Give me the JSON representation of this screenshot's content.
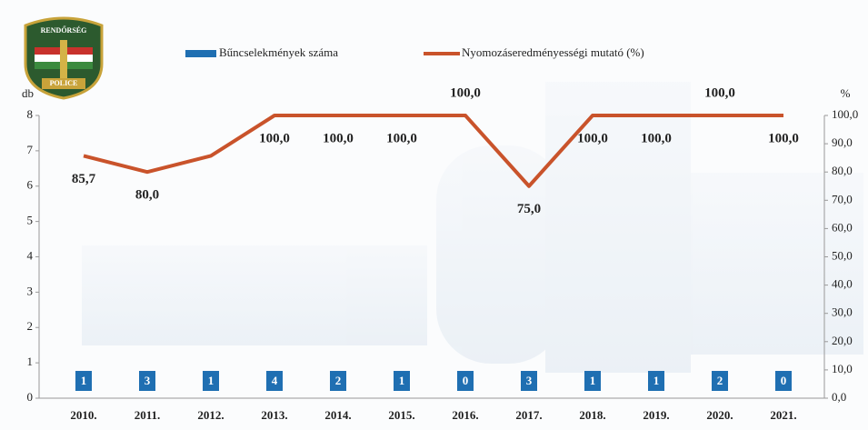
{
  "logo": {
    "top_text": "RENDŐRSÉG",
    "bottom_text": "POLICE"
  },
  "chart_data": {
    "type": "bar-line",
    "categories": [
      "2010.",
      "2011.",
      "2012.",
      "2013.",
      "2014.",
      "2015.",
      "2016.",
      "2017.",
      "2018.",
      "2019.",
      "2020.",
      "2021."
    ],
    "y_label": "db",
    "y2_label": "%",
    "ylim": [
      0,
      8
    ],
    "yticks": [
      0,
      1,
      2,
      3,
      4,
      5,
      6,
      7,
      8
    ],
    "y2lim": [
      0,
      100
    ],
    "y2ticks": [
      {
        "value": 0,
        "label": "0,0"
      },
      {
        "value": 10,
        "label": "10,0"
      },
      {
        "value": 20,
        "label": "20,0"
      },
      {
        "value": 30,
        "label": "30,0"
      },
      {
        "value": 40,
        "label": "40,0"
      },
      {
        "value": 50,
        "label": "50,0"
      },
      {
        "value": 60,
        "label": "60,0"
      },
      {
        "value": 70,
        "label": "70,0"
      },
      {
        "value": 80,
        "label": "80,0"
      },
      {
        "value": 90,
        "label": "90,0"
      },
      {
        "value": 100,
        "label": "100,0"
      }
    ],
    "series": [
      {
        "name": "Bűncselekmények száma",
        "color": "#1f6fb2",
        "values": [
          1,
          3,
          1,
          4,
          2,
          1,
          0,
          3,
          1,
          1,
          2,
          0
        ]
      },
      {
        "name": "Nyomozáseredményességi mutató (%)",
        "color": "#c9532b",
        "axis": "y2",
        "values": [
          85.7,
          80,
          85.7,
          100,
          100,
          100,
          100,
          75,
          100,
          100,
          100,
          100
        ],
        "value_labels": [
          "85,7",
          "80,0",
          null,
          "100,0",
          "100,0",
          "100,0",
          "100,0",
          "75,0",
          "100,0",
          "100,0",
          "100,0",
          "100,0"
        ]
      }
    ],
    "legend": "top"
  }
}
